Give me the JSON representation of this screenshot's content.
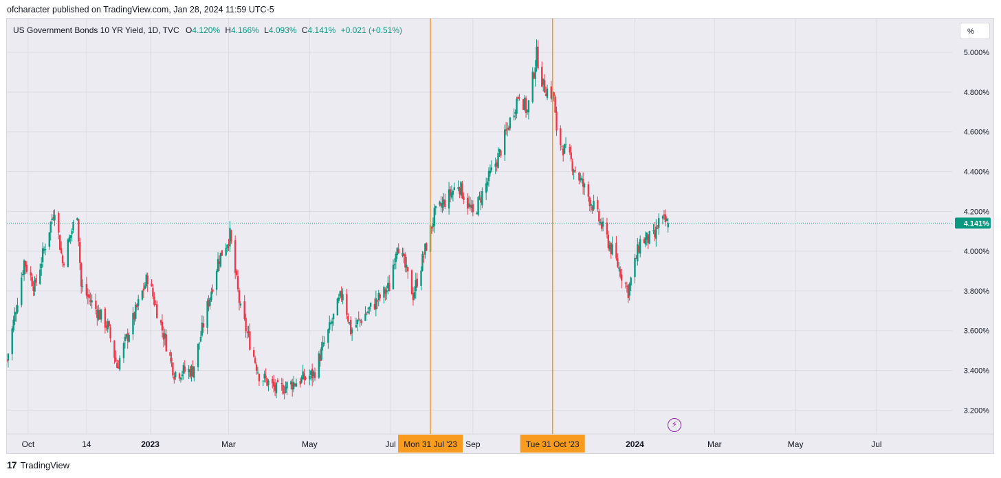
{
  "header": {
    "publish_line": "ofcharacter published on TradingView.com, Jan 28, 2024 11:59 UTC-5"
  },
  "legend": {
    "symbol": "US Government Bonds 10 YR Yield, 1D, TVC",
    "open_key": "O",
    "open": "4.120%",
    "high_key": "H",
    "high": "4.166%",
    "low_key": "L",
    "low": "4.093%",
    "close_key": "C",
    "close": "4.141%",
    "change": "+0.021 (+0.51%)"
  },
  "scale_button": {
    "label": "%"
  },
  "footer": {
    "logo_glyph": "17",
    "brand": "TradingView"
  },
  "colors": {
    "up": "#089981",
    "down": "#f23645",
    "marker": "#f89b1e",
    "price_line": "#089981",
    "background": "#ebebf1",
    "grid": "#dcdde3"
  },
  "chart_data": {
    "type": "candlestick",
    "title": "US Government Bonds 10 YR Yield, 1D, TVC",
    "y_unit": "%",
    "ylim": [
      3.08,
      5.17
    ],
    "y_ticks": [
      {
        "value": 5.0,
        "label": "5.000%"
      },
      {
        "value": 4.8,
        "label": "4.800%"
      },
      {
        "value": 4.6,
        "label": "4.600%"
      },
      {
        "value": 4.4,
        "label": "4.400%"
      },
      {
        "value": 4.2,
        "label": "4.200%"
      },
      {
        "value": 4.0,
        "label": "4.000%"
      },
      {
        "value": 3.8,
        "label": "3.800%"
      },
      {
        "value": 3.6,
        "label": "3.600%"
      },
      {
        "value": 3.4,
        "label": "3.400%"
      },
      {
        "value": 3.2,
        "label": "3.200%"
      }
    ],
    "xlim": [
      "2022-09-15",
      "2024-08-27"
    ],
    "x_ticks": [
      {
        "date": "2022-10-01",
        "label": "Oct",
        "bold": false
      },
      {
        "date": "2022-11-14",
        "label": "14",
        "bold": false
      },
      {
        "date": "2023-01-01",
        "label": "2023",
        "bold": true
      },
      {
        "date": "2023-03-01",
        "label": "Mar",
        "bold": false
      },
      {
        "date": "2023-05-01",
        "label": "May",
        "bold": false
      },
      {
        "date": "2023-07-01",
        "label": "Jul",
        "bold": false
      },
      {
        "date": "2023-09-01",
        "label": "Sep",
        "bold": false
      },
      {
        "date": "2024-01-01",
        "label": "2024",
        "bold": true
      },
      {
        "date": "2024-03-01",
        "label": "Mar",
        "bold": false
      },
      {
        "date": "2024-05-01",
        "label": "May",
        "bold": false
      },
      {
        "date": "2024-07-01",
        "label": "Jul",
        "bold": false
      }
    ],
    "last_price": {
      "value": 4.141,
      "label": "4.141%"
    },
    "markers": [
      {
        "date": "2023-07-31",
        "label": "Mon 31 Jul '23"
      },
      {
        "date": "2023-10-31",
        "label": "Tue 31 Oct '23"
      }
    ],
    "anchors": [
      {
        "date": "2022-09-15",
        "close": 3.45
      },
      {
        "date": "2022-09-28",
        "close": 3.95
      },
      {
        "date": "2022-10-06",
        "close": 3.82
      },
      {
        "date": "2022-10-21",
        "close": 4.22
      },
      {
        "date": "2022-10-27",
        "close": 3.94
      },
      {
        "date": "2022-11-07",
        "close": 4.2
      },
      {
        "date": "2022-11-10",
        "close": 3.82
      },
      {
        "date": "2022-11-30",
        "close": 3.62
      },
      {
        "date": "2022-12-07",
        "close": 3.42
      },
      {
        "date": "2022-12-30",
        "close": 3.87
      },
      {
        "date": "2023-01-19",
        "close": 3.39
      },
      {
        "date": "2023-02-02",
        "close": 3.4
      },
      {
        "date": "2023-02-21",
        "close": 3.95
      },
      {
        "date": "2023-03-02",
        "close": 4.08
      },
      {
        "date": "2023-03-10",
        "close": 3.7
      },
      {
        "date": "2023-03-24",
        "close": 3.38
      },
      {
        "date": "2023-04-06",
        "close": 3.3
      },
      {
        "date": "2023-05-04",
        "close": 3.38
      },
      {
        "date": "2023-05-26",
        "close": 3.8
      },
      {
        "date": "2023-06-01",
        "close": 3.6
      },
      {
        "date": "2023-06-30",
        "close": 3.82
      },
      {
        "date": "2023-07-06",
        "close": 4.05
      },
      {
        "date": "2023-07-18",
        "close": 3.78
      },
      {
        "date": "2023-08-03",
        "close": 4.18
      },
      {
        "date": "2023-08-21",
        "close": 4.34
      },
      {
        "date": "2023-09-01",
        "close": 4.18
      },
      {
        "date": "2023-09-21",
        "close": 4.49
      },
      {
        "date": "2023-10-06",
        "close": 4.8
      },
      {
        "date": "2023-10-12",
        "close": 4.7
      },
      {
        "date": "2023-10-19",
        "close": 4.99
      },
      {
        "date": "2023-10-24",
        "close": 4.83
      },
      {
        "date": "2023-11-01",
        "close": 4.78
      },
      {
        "date": "2023-11-03",
        "close": 4.58
      },
      {
        "date": "2023-11-14",
        "close": 4.45
      },
      {
        "date": "2023-12-01",
        "close": 4.22
      },
      {
        "date": "2023-12-13",
        "close": 4.03
      },
      {
        "date": "2023-12-27",
        "close": 3.8
      },
      {
        "date": "2024-01-05",
        "close": 4.05
      },
      {
        "date": "2024-01-16",
        "close": 4.07
      },
      {
        "date": "2024-01-19",
        "close": 4.15
      },
      {
        "date": "2024-01-26",
        "close": 4.141
      }
    ]
  }
}
